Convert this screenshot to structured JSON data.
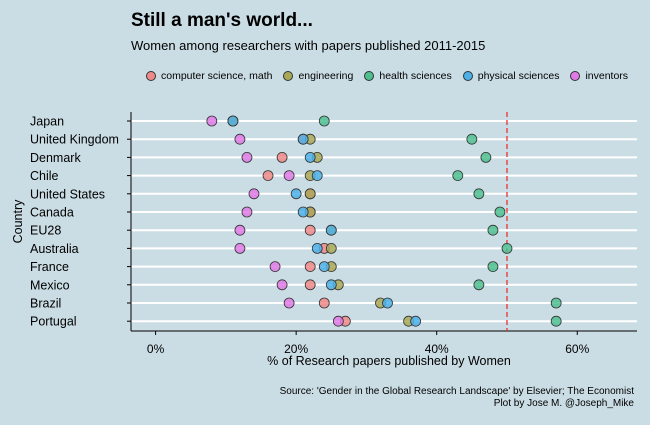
{
  "title": "Still a man's world...",
  "subtitle": "Women among researchers with papers published 2011-2015",
  "source_line1": "Source:  'Gender in the Global Research Landscape' by Elsevier; The Economist",
  "source_line2": "Plot by Jose M. @Joseph_Mike",
  "colors": {
    "computer science, math": "#f08a8a",
    "engineering": "#a9a857",
    "health sciences": "#4fbf90",
    "physical sciences": "#4cb0e8",
    "inventors": "#e07ae6"
  },
  "chart_data": {
    "type": "scatter",
    "xlabel": "% of Research papers published by Women",
    "ylabel": "Country",
    "xlim": [
      -3.5,
      68.5
    ],
    "xticks": [
      0,
      20,
      40,
      60
    ],
    "xtick_labels": [
      "0%",
      "20%",
      "40%",
      "60%"
    ],
    "reference_line": 50,
    "legend_position": "top",
    "series_order": [
      "computer science, math",
      "engineering",
      "health sciences",
      "physical sciences",
      "inventors"
    ],
    "categories": [
      "Japan",
      "United Kingdom",
      "Denmark",
      "Chile",
      "United States",
      "Canada",
      "EU28",
      "Australia",
      "France",
      "Mexico",
      "Brazil",
      "Portugal"
    ],
    "series": [
      {
        "name": "computer science, math",
        "values": [
          11,
          21,
          18,
          16,
          22,
          22,
          22,
          24,
          22,
          22,
          24,
          27
        ]
      },
      {
        "name": "engineering",
        "values": [
          11,
          22,
          23,
          22,
          22,
          22,
          25,
          25,
          25,
          26,
          32,
          36
        ]
      },
      {
        "name": "health sciences",
        "values": [
          24,
          45,
          47,
          43,
          46,
          49,
          48,
          50,
          48,
          46,
          57,
          57
        ]
      },
      {
        "name": "physical sciences",
        "values": [
          11,
          21,
          22,
          23,
          20,
          21,
          25,
          23,
          24,
          25,
          33,
          37
        ]
      },
      {
        "name": "inventors",
        "values": [
          8,
          12,
          13,
          19,
          14,
          13,
          12,
          12,
          17,
          18,
          19,
          26
        ]
      }
    ]
  }
}
